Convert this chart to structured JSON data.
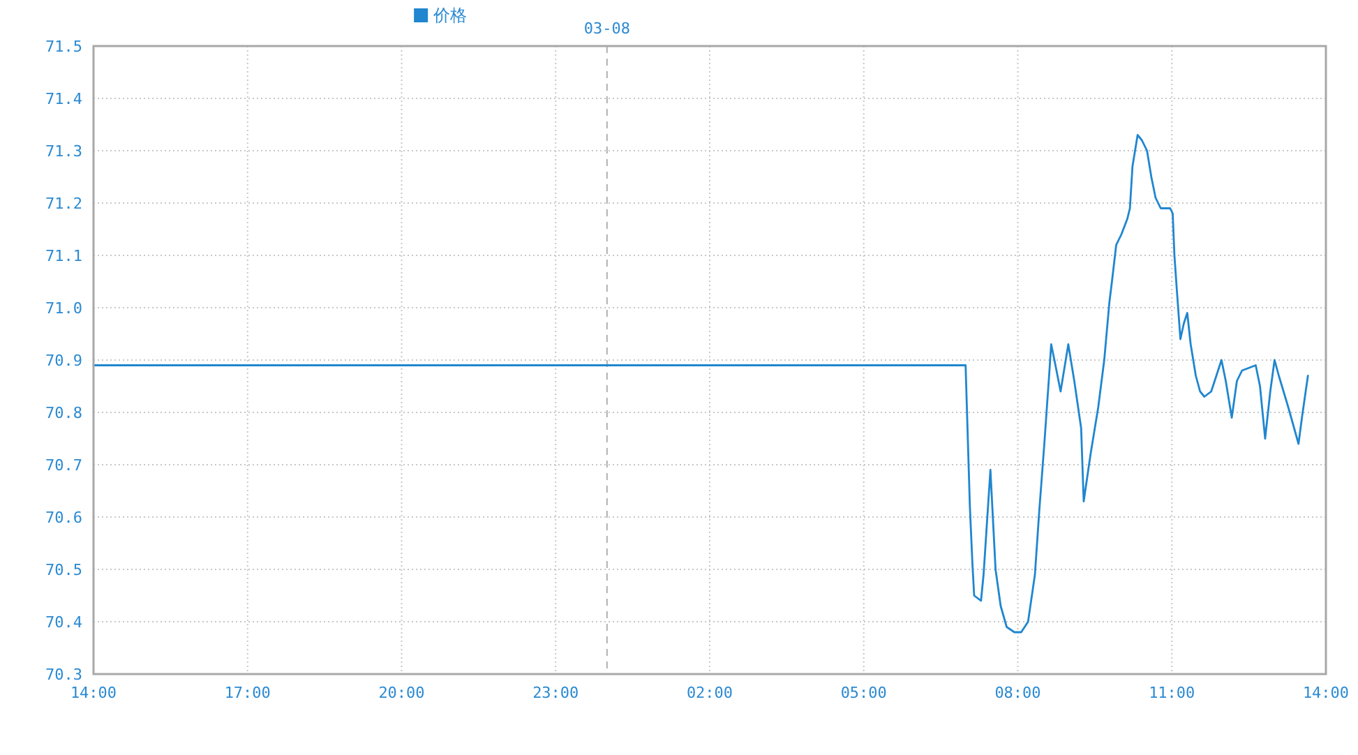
{
  "chart_data": {
    "type": "line",
    "x": [
      "--03-07T14:00",
      "--03-08T06:59",
      "--03-08T07:04",
      "--03-08T07:07",
      "--03-08T07:09",
      "--03-08T07:17",
      "--03-08T07:20",
      "--03-08T07:28",
      "--03-08T07:34",
      "--03-08T07:40",
      "--03-08T07:47",
      "--03-08T07:56",
      "--03-08T08:04",
      "--03-08T08:12",
      "--03-08T08:20",
      "--03-08T08:25",
      "--03-08T08:31",
      "--03-08T08:37",
      "--03-08T08:39",
      "--03-08T08:44",
      "--03-08T08:50",
      "--03-08T08:55",
      "--03-08T08:59",
      "--03-08T09:06",
      "--03-08T09:14",
      "--03-08T09:17",
      "--03-08T09:25",
      "--03-08T09:34",
      "--03-08T09:41",
      "--03-08T09:47",
      "--03-08T09:50",
      "--03-08T09:55",
      "--03-08T10:01",
      "--03-08T10:08",
      "--03-08T10:11",
      "--03-08T10:14",
      "--03-08T10:20",
      "--03-08T10:25",
      "--03-08T10:31",
      "--03-08T10:36",
      "--03-08T10:41",
      "--03-08T10:47",
      "--03-08T10:58",
      "--03-08T11:01",
      "--03-08T11:03",
      "--03-08T11:06",
      "--03-08T11:10",
      "--03-08T11:14",
      "--03-08T11:18",
      "--03-08T11:22",
      "--03-08T11:28",
      "--03-08T11:33",
      "--03-08T11:38",
      "--03-08T11:46",
      "--03-08T11:58",
      "--03-08T12:03",
      "--03-08T12:10",
      "--03-08T12:16",
      "--03-08T12:22",
      "--03-08T12:38",
      "--03-08T12:43",
      "--03-08T12:49",
      "--03-08T12:55",
      "--03-08T13:00",
      "--03-08T13:05",
      "--03-08T13:16",
      "--03-08T13:28",
      "--03-08T13:32",
      "--03-08T13:39"
    ],
    "series": [
      {
        "name": "价格",
        "color": "#1f86cf",
        "values": [
          70.89,
          70.89,
          70.62,
          70.51,
          70.45,
          70.44,
          70.49,
          70.69,
          70.5,
          70.43,
          70.39,
          70.38,
          70.38,
          70.4,
          70.49,
          70.61,
          70.74,
          70.88,
          70.93,
          70.89,
          70.84,
          70.89,
          70.93,
          70.86,
          70.77,
          70.63,
          70.72,
          70.81,
          70.9,
          71.01,
          71.05,
          71.12,
          71.14,
          71.17,
          71.19,
          71.27,
          71.33,
          71.32,
          71.3,
          71.25,
          71.21,
          71.19,
          71.19,
          71.18,
          71.1,
          71.03,
          70.94,
          70.97,
          70.99,
          70.93,
          70.87,
          70.84,
          70.83,
          70.84,
          70.9,
          70.86,
          70.79,
          70.86,
          70.88,
          70.89,
          70.85,
          70.75,
          70.84,
          70.9,
          70.87,
          70.81,
          70.74,
          70.79,
          70.87
        ]
      }
    ],
    "xlim": [
      "--03-07T14:00",
      "--03-08T14:00"
    ],
    "xticks": [
      {
        "value": "--03-07T14:00",
        "label": "14:00"
      },
      {
        "value": "--03-07T17:00",
        "label": "17:00"
      },
      {
        "value": "--03-07T20:00",
        "label": "20:00"
      },
      {
        "value": "--03-07T23:00",
        "label": "23:00"
      },
      {
        "value": "--03-08T02:00",
        "label": "02:00"
      },
      {
        "value": "--03-08T05:00",
        "label": "05:00"
      },
      {
        "value": "--03-08T08:00",
        "label": "08:00"
      },
      {
        "value": "--03-08T11:00",
        "label": "11:00"
      },
      {
        "value": "--03-08T14:00",
        "label": "14:00"
      }
    ],
    "ylim": [
      70.3,
      71.5
    ],
    "yticks": [
      70.3,
      70.4,
      70.5,
      70.6,
      70.7,
      70.8,
      70.9,
      {
        "value": 71,
        "label": "71.0"
      },
      71.1,
      71.2,
      71.3,
      71.4,
      71.5
    ],
    "grid": true,
    "legend": "top",
    "ref_lines": [
      {
        "axis": "x",
        "value": "--03-08",
        "label": "03-08",
        "color": "#b0b0b0",
        "line_style": "dashed"
      }
    ]
  }
}
